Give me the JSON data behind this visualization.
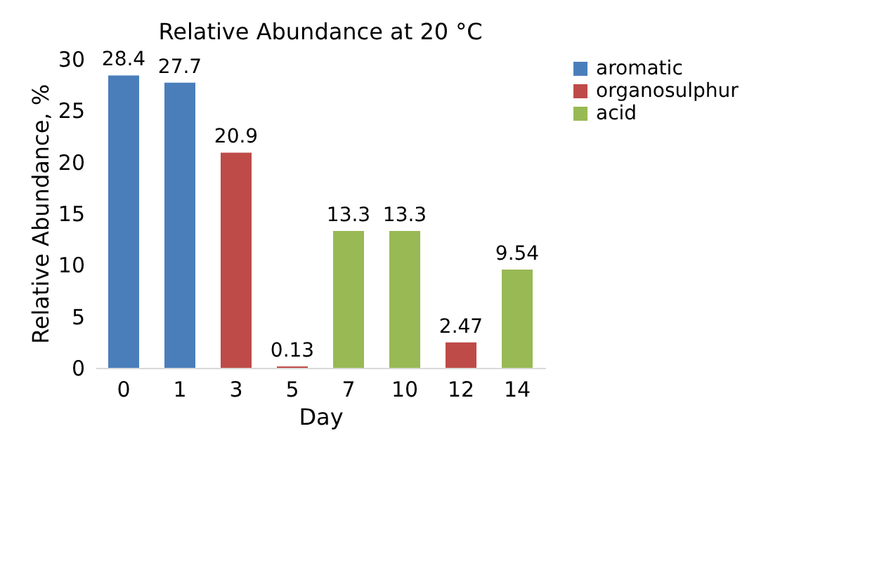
{
  "chart_data": {
    "type": "bar",
    "title": "Relative Abundance at 20 °C",
    "xlabel": "Day",
    "ylabel": "Relative Abundance, %",
    "categories": [
      "0",
      "1",
      "3",
      "5",
      "7",
      "10",
      "12",
      "14"
    ],
    "series": [
      {
        "name": "aromatic",
        "color": "#4a7ebb",
        "values": [
          28.4,
          27.7,
          null,
          null,
          null,
          null,
          null,
          null
        ]
      },
      {
        "name": "organosulphur",
        "color": "#be4b48",
        "values": [
          null,
          null,
          20.9,
          0.13,
          null,
          null,
          2.47,
          null
        ]
      },
      {
        "name": "acid",
        "color": "#98b954",
        "values": [
          null,
          null,
          null,
          null,
          13.3,
          13.3,
          null,
          9.54
        ]
      }
    ],
    "ylim": [
      0,
      30
    ],
    "yticks": [
      0,
      5,
      10,
      15,
      20,
      25,
      30
    ],
    "data_labels": true,
    "legend": "right",
    "grid": false
  }
}
